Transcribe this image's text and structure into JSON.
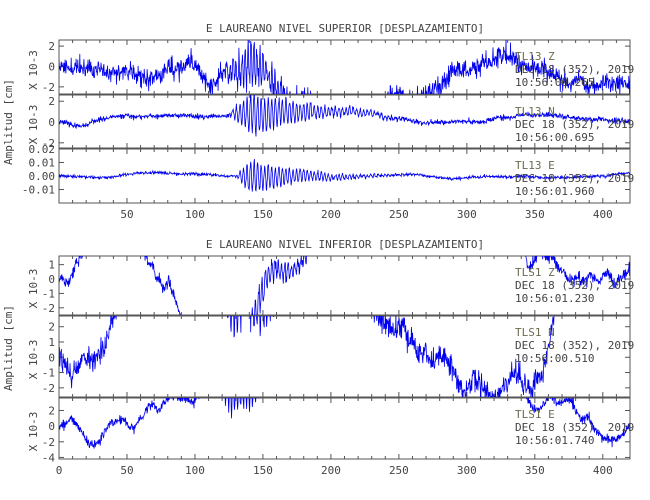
{
  "chart_data": [
    {
      "type": "line",
      "title": "E LAUREANO NIVEL SUPERIOR [DESPLAZAMIENTO]",
      "ylabel": "Amplitud [cm]",
      "xlim": [
        0,
        420
      ],
      "xticks": [
        "50",
        "100",
        "150",
        "200",
        "250",
        "300",
        "350",
        "400"
      ],
      "xtick_values": [
        50,
        100,
        150,
        200,
        250,
        300,
        350,
        400
      ],
      "grid": false,
      "line_color": "#0000ee",
      "panels": [
        {
          "scale_label": "X 10-3",
          "ylim": [
            -2.7,
            2.6
          ],
          "ytick_values": [
            -2,
            0,
            2
          ],
          "ytick_labels": [
            "-2",
            "0",
            "2"
          ],
          "station": "TL13",
          "component": "Z",
          "date": "DEC 18 (352), 2019",
          "time": "10:56:00.265",
          "signal": {
            "noise": 0.5,
            "lf_amp": 0.35,
            "burst_start": 120,
            "burst_peak": 141,
            "burst_peak_amp": 2.4,
            "burst_decay": 30,
            "burst_period": 2.2,
            "coda_end": 230,
            "seed": 11
          }
        },
        {
          "scale_label": "X 10-3",
          "ylim": [
            -2.5,
            2.6
          ],
          "ytick_values": [
            -2,
            0,
            2
          ],
          "ytick_labels": [
            "-2",
            "0",
            "2"
          ],
          "station": "TL13",
          "component": "N",
          "date": "DEC 18 (352), 2019",
          "time": "10:56:00.695",
          "signal": {
            "noise": 0.12,
            "lf_amp": 0.05,
            "burst_start": 125,
            "burst_peak": 142,
            "burst_peak_amp": 2.3,
            "burst_decay": 42,
            "burst_period": 2.6,
            "coda_end": 265,
            "seed": 23
          }
        },
        {
          "scale_label": "",
          "ylim": [
            -0.02,
            0.02
          ],
          "ytick_values": [
            -0.01,
            0.0,
            0.01,
            0.02
          ],
          "ytick_labels": [
            "-0.01",
            "0.00",
            "0.01",
            "0.02"
          ],
          "station": "TL13",
          "component": "E",
          "date": "DEC 18 (352), 2019",
          "time": "10:56:01.960",
          "signal": {
            "noise": 0.0006,
            "lf_amp": 0.0002,
            "burst_start": 130,
            "burst_peak": 142,
            "burst_peak_amp": 0.0145,
            "burst_decay": 34,
            "burst_period": 2.6,
            "coda_end": 250,
            "seed": 37
          }
        }
      ]
    },
    {
      "type": "line",
      "title": "E LAUREANO NIVEL INFERIOR [DESPLAZAMIENTO]",
      "ylabel": "Amplitud [cm]",
      "xlim": [
        0,
        420
      ],
      "xticks": [
        "0",
        "50",
        "100",
        "150",
        "200",
        "250",
        "300",
        "350",
        "400"
      ],
      "xtick_values": [
        0,
        50,
        100,
        150,
        200,
        250,
        300,
        350,
        400
      ],
      "grid": false,
      "line_color": "#0000ee",
      "panels": [
        {
          "scale_label": "X 10-3",
          "ylim": [
            -2.5,
            1.6
          ],
          "ytick_values": [
            -2,
            -1,
            0,
            1
          ],
          "ytick_labels": [
            "-2",
            "-1",
            "0",
            "1"
          ],
          "station": "TLS1",
          "component": "Z",
          "date": "DEC 18 (352), 2019",
          "time": "10:56:01.230",
          "signal": {
            "noise": 0.22,
            "lf_amp": 0.55,
            "burst_start": 118,
            "burst_peak": 128,
            "burst_peak_amp": 1.6,
            "burst_decay": 40,
            "burst_period": 2.4,
            "coda_end": 230,
            "seed": 51
          }
        },
        {
          "scale_label": "X 10-3",
          "ylim": [
            -2.6,
            2.7
          ],
          "ytick_values": [
            -2,
            -1,
            0,
            1,
            2
          ],
          "ytick_labels": [
            "-2",
            "-1",
            "0",
            "1",
            "2"
          ],
          "station": "TLS1",
          "component": "N",
          "date": "DEC 18 (352), 2019",
          "time": "10:56:00.510",
          "signal": {
            "noise": 0.4,
            "lf_amp": 0.45,
            "burst_start": 118,
            "burst_peak": 128,
            "burst_peak_amp": 2.1,
            "burst_decay": 45,
            "burst_period": 2.4,
            "coda_end": 240,
            "seed": 67
          }
        },
        {
          "scale_label": "X 10-3",
          "ylim": [
            -4.2,
            3.6
          ],
          "ytick_values": [
            -4,
            -2,
            0,
            2
          ],
          "ytick_labels": [
            "-4",
            "-2",
            "0",
            "2"
          ],
          "station": "TLS1",
          "component": "E",
          "date": "DEC 18 (352), 2019",
          "time": "10:56:01.740",
          "signal": {
            "noise": 0.32,
            "lf_amp": 0.55,
            "burst_start": 118,
            "burst_peak": 126,
            "burst_peak_amp": 3.7,
            "burst_decay": 22,
            "burst_period": 2.2,
            "coda_end": 190,
            "seed": 83
          }
        }
      ]
    }
  ]
}
